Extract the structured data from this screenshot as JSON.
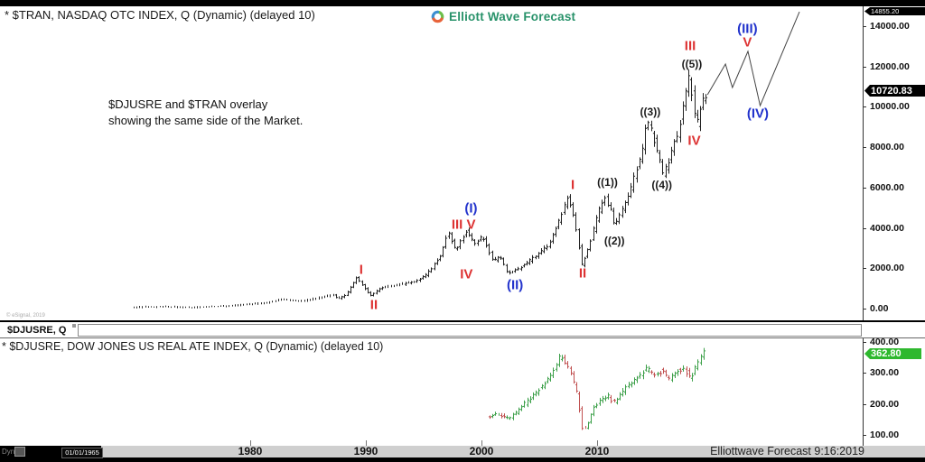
{
  "chrome": {
    "bar_color": "#000000"
  },
  "header": {
    "title": "* $TRAN, NASDAQ OTC INDEX, Q (Dynamic) (delayed 10)",
    "brand_name": "Elliott Wave Forecast",
    "brand_color": "#28926a"
  },
  "annotation": {
    "line1": "$DJUSRE and $TRAN overlay",
    "line2": "showing the same side of the Market."
  },
  "copyright": "© eSignal, 2019",
  "divider": {
    "tab_label": "$DJUSRE, Q"
  },
  "panel2_title": "* $DJUSRE, DOW JONES US REAL ATE INDEX, Q (Dynamic) (delayed 10)",
  "footer": {
    "dyn_label": "Dyn",
    "date_box": "01/01/1965",
    "credit": "Elliottwave Forecast 9:16:2019"
  },
  "wave_colors": {
    "red": "#dd3333",
    "blue": "#2233cc",
    "dark": "#1a1a1a"
  },
  "chart_data": [
    {
      "name": "$TRAN",
      "type": "bar",
      "bar_style": "ohlc",
      "color": "#222222",
      "x_unit": "year",
      "xlim": [
        1969.9,
        2019.55
      ],
      "ylim": [
        0,
        14855.2
      ],
      "y_tick_values": [
        14000,
        12000,
        10000,
        8000,
        6000,
        4000,
        2000,
        0
      ],
      "y_tick_labels": [
        "14000.00",
        "12000.00",
        "10000.00",
        "8000.00",
        "6000.00",
        "4000.00",
        "2000.00",
        "0.00"
      ],
      "x_tick_values": [
        1980,
        1990,
        2000,
        2010
      ],
      "x_tick_labels": [
        "1980",
        "1990",
        "2000",
        "2010"
      ],
      "last_price": 10720.83,
      "last_price_label": "10720.83",
      "projection_target_label": "14855.20",
      "bar_interval_years": 0.25,
      "anchors": [
        [
          1969.9,
          60
        ],
        [
          1971.0,
          85
        ],
        [
          1973.0,
          95
        ],
        [
          1974.8,
          55
        ],
        [
          1977.0,
          95
        ],
        [
          1980.0,
          200
        ],
        [
          1981.7,
          310
        ],
        [
          1983.0,
          470
        ],
        [
          1984.5,
          360
        ],
        [
          1986.2,
          540
        ],
        [
          1987.4,
          690
        ],
        [
          1987.8,
          480
        ],
        [
          1988.5,
          670
        ],
        [
          1989.4,
          1540
        ],
        [
          1990.6,
          640
        ],
        [
          1991.5,
          1030
        ],
        [
          1993.0,
          1190
        ],
        [
          1994.5,
          1340
        ],
        [
          1995.5,
          1700
        ],
        [
          1996.6,
          2550
        ],
        [
          1997.3,
          3800
        ],
        [
          1998.0,
          2880
        ],
        [
          1998.9,
          3850
        ],
        [
          1999.6,
          3220
        ],
        [
          2000.3,
          3580
        ],
        [
          2001.2,
          2330
        ],
        [
          2001.8,
          2600
        ],
        [
          2002.5,
          1720
        ],
        [
          2003.5,
          2010
        ],
        [
          2004.8,
          2550
        ],
        [
          2006.0,
          3130
        ],
        [
          2007.0,
          4430
        ],
        [
          2007.7,
          5640
        ],
        [
          2008.3,
          4340
        ],
        [
          2008.9,
          2150
        ],
        [
          2009.5,
          3090
        ],
        [
          2010.2,
          4520
        ],
        [
          2010.8,
          5590
        ],
        [
          2011.4,
          4920
        ],
        [
          2011.7,
          4160
        ],
        [
          2012.5,
          4965
        ],
        [
          2013.2,
          6040
        ],
        [
          2014.0,
          7600
        ],
        [
          2014.6,
          9350
        ],
        [
          2015.3,
          8050
        ],
        [
          2015.9,
          6660
        ],
        [
          2016.5,
          7420
        ],
        [
          2017.2,
          8770
        ],
        [
          2017.8,
          10290
        ],
        [
          2018.1,
          11500
        ],
        [
          2018.5,
          10290
        ],
        [
          2018.8,
          8860
        ],
        [
          2019.2,
          10110
        ],
        [
          2019.55,
          10690
        ]
      ],
      "projection": [
        [
          2019.55,
          10600
        ],
        [
          2021.1,
          12120
        ],
        [
          2021.7,
          10960
        ],
        [
          2023.05,
          12750
        ],
        [
          2024.1,
          10060
        ],
        [
          2027.5,
          14710
        ]
      ],
      "wave_labels": [
        {
          "text": "I",
          "t": 1989.6,
          "v": 1920,
          "color": "red"
        },
        {
          "text": "II",
          "t": 1990.7,
          "v": 180,
          "color": "red"
        },
        {
          "text": "III",
          "t": 1997.9,
          "v": 4160,
          "color": "red"
        },
        {
          "text": "IV",
          "t": 1998.7,
          "v": 1700,
          "color": "red"
        },
        {
          "text": "V",
          "t": 1999.1,
          "v": 4160,
          "color": "red"
        },
        {
          "text": "(I)",
          "t": 1999.1,
          "v": 4965,
          "color": "blue"
        },
        {
          "text": "(II)",
          "t": 2002.9,
          "v": 1160,
          "color": "blue"
        },
        {
          "text": "I",
          "t": 2007.9,
          "v": 6130,
          "color": "red"
        },
        {
          "text": "II",
          "t": 2008.75,
          "v": 1745,
          "color": "red"
        },
        {
          "text": "((1))",
          "t": 2010.9,
          "v": 6260,
          "color": "dark"
        },
        {
          "text": "((2))",
          "t": 2011.5,
          "v": 3355,
          "color": "dark"
        },
        {
          "text": "((3))",
          "t": 2014.6,
          "v": 9750,
          "color": "dark"
        },
        {
          "text": "((4))",
          "t": 2015.6,
          "v": 6130,
          "color": "dark"
        },
        {
          "text": "((5))",
          "t": 2018.2,
          "v": 12120,
          "color": "dark"
        },
        {
          "text": "III",
          "t": 2018.05,
          "v": 13020,
          "color": "red"
        },
        {
          "text": "IV",
          "t": 2018.4,
          "v": 8320,
          "color": "red"
        },
        {
          "text": "V",
          "t": 2023.0,
          "v": 13200,
          "color": "red"
        },
        {
          "text": "(III)",
          "t": 2023.0,
          "v": 13850,
          "color": "blue"
        },
        {
          "text": "(IV)",
          "t": 2023.9,
          "v": 9660,
          "color": "blue"
        }
      ]
    },
    {
      "name": "$DJUSRE",
      "type": "bar",
      "bar_style": "ohlc",
      "up_color": "#3da04a",
      "down_color": "#c05050",
      "x_unit": "year",
      "xlim": [
        2000.7,
        2019.45
      ],
      "ylim": [
        100,
        400
      ],
      "y_tick_values": [
        400,
        300,
        200,
        100
      ],
      "y_tick_labels": [
        "400.00",
        "300.00",
        "200.00",
        "100.00"
      ],
      "last_price": 362.8,
      "last_price_label": "362.80",
      "bar_interval_years": 0.25,
      "anchors": [
        [
          2000.7,
          155
        ],
        [
          2001.5,
          168
        ],
        [
          2002.0,
          160
        ],
        [
          2002.6,
          152
        ],
        [
          2003.3,
          175
        ],
        [
          2004.0,
          202
        ],
        [
          2005.0,
          238
        ],
        [
          2006.0,
          285
        ],
        [
          2006.6,
          320
        ],
        [
          2007.1,
          358
        ],
        [
          2007.8,
          313
        ],
        [
          2008.5,
          230
        ],
        [
          2009.0,
          111
        ],
        [
          2009.4,
          135
        ],
        [
          2010.0,
          194
        ],
        [
          2010.7,
          215
        ],
        [
          2011.2,
          224
        ],
        [
          2011.6,
          202
        ],
        [
          2012.5,
          244
        ],
        [
          2013.5,
          277
        ],
        [
          2014.5,
          313
        ],
        [
          2015.1,
          294
        ],
        [
          2015.9,
          307
        ],
        [
          2016.4,
          277
        ],
        [
          2017.0,
          305
        ],
        [
          2017.8,
          313
        ],
        [
          2018.3,
          277
        ],
        [
          2018.8,
          327
        ],
        [
          2019.45,
          362.8
        ]
      ]
    }
  ]
}
